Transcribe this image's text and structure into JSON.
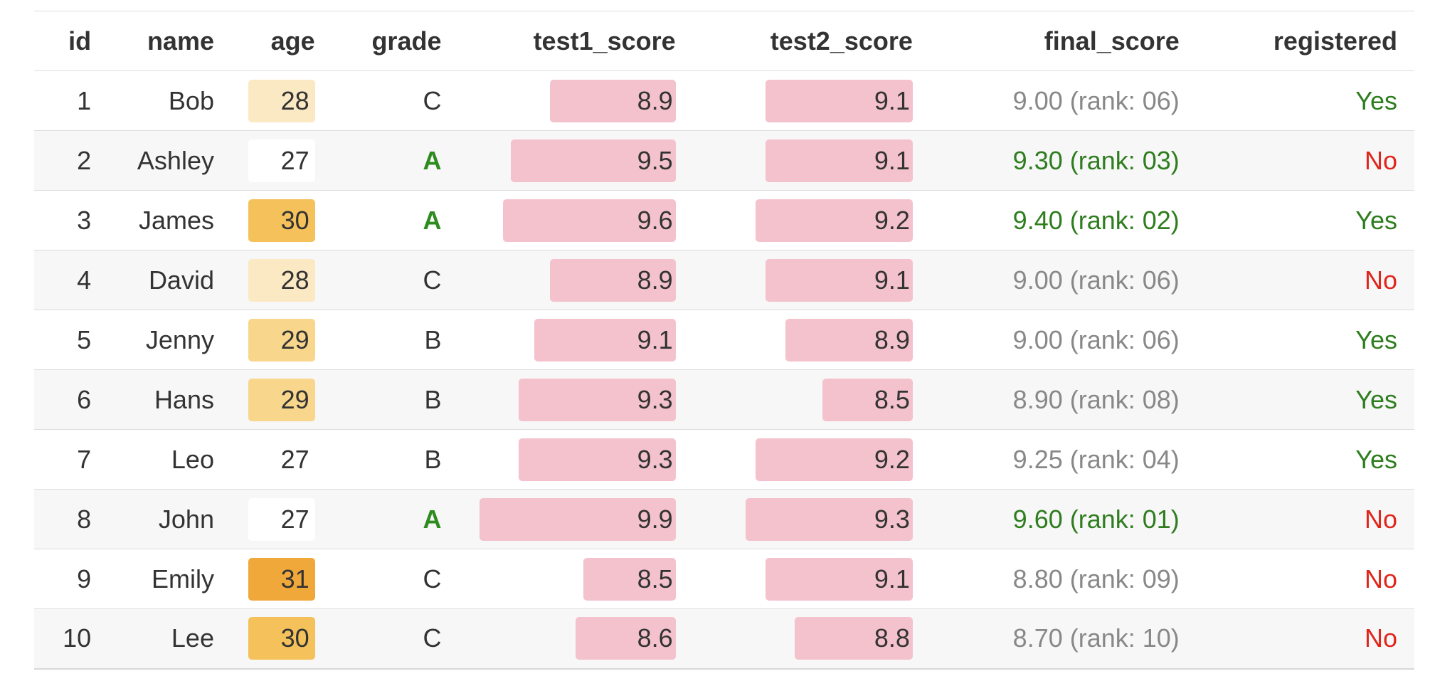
{
  "table": {
    "headers": [
      "id",
      "name",
      "age",
      "grade",
      "test1_score",
      "test2_score",
      "final_score",
      "registered"
    ],
    "rows": [
      {
        "id": "1",
        "name": "Bob",
        "age": "28",
        "age_color": "#fbe9c4",
        "grade": "C",
        "test1_score": "8.9",
        "test1_fraction": 0.64,
        "test2_score": "9.1",
        "test2_fraction": 0.75,
        "final_score": "9.00 (rank: 06)",
        "final_highlight": false,
        "registered": "Yes"
      },
      {
        "id": "2",
        "name": "Ashley",
        "age": "27",
        "age_color": "#ffffff",
        "grade": "A",
        "test1_score": "9.5",
        "test1_fraction": 0.84,
        "test2_score": "9.1",
        "test2_fraction": 0.75,
        "final_score": "9.30 (rank: 03)",
        "final_highlight": true,
        "registered": "No"
      },
      {
        "id": "3",
        "name": "James",
        "age": "30",
        "age_color": "#f5c15a",
        "grade": "A",
        "test1_score": "9.6",
        "test1_fraction": 0.88,
        "test2_score": "9.2",
        "test2_fraction": 0.8,
        "final_score": "9.40 (rank: 02)",
        "final_highlight": true,
        "registered": "Yes"
      },
      {
        "id": "4",
        "name": "David",
        "age": "28",
        "age_color": "#fbe9c4",
        "grade": "C",
        "test1_score": "8.9",
        "test1_fraction": 0.64,
        "test2_score": "9.1",
        "test2_fraction": 0.75,
        "final_score": "9.00 (rank: 06)",
        "final_highlight": false,
        "registered": "No"
      },
      {
        "id": "5",
        "name": "Jenny",
        "age": "29",
        "age_color": "#f8d68c",
        "grade": "B",
        "test1_score": "9.1",
        "test1_fraction": 0.72,
        "test2_score": "8.9",
        "test2_fraction": 0.65,
        "final_score": "9.00 (rank: 06)",
        "final_highlight": false,
        "registered": "Yes"
      },
      {
        "id": "6",
        "name": "Hans",
        "age": "29",
        "age_color": "#f8d68c",
        "grade": "B",
        "test1_score": "9.3",
        "test1_fraction": 0.8,
        "test2_score": "8.5",
        "test2_fraction": 0.46,
        "final_score": "8.90 (rank: 08)",
        "final_highlight": false,
        "registered": "Yes"
      },
      {
        "id": "7",
        "name": "Leo",
        "age": "27",
        "age_color": "transparent",
        "grade": "B",
        "test1_score": "9.3",
        "test1_fraction": 0.8,
        "test2_score": "9.2",
        "test2_fraction": 0.8,
        "final_score": "9.25 (rank: 04)",
        "final_highlight": false,
        "registered": "Yes"
      },
      {
        "id": "8",
        "name": "John",
        "age": "27",
        "age_color": "#ffffff",
        "grade": "A",
        "test1_score": "9.9",
        "test1_fraction": 1.0,
        "test2_score": "9.3",
        "test2_fraction": 0.85,
        "final_score": "9.60 (rank: 01)",
        "final_highlight": true,
        "registered": "No"
      },
      {
        "id": "9",
        "name": "Emily",
        "age": "31",
        "age_color": "#f0a83a",
        "grade": "C",
        "test1_score": "8.5",
        "test1_fraction": 0.47,
        "test2_score": "9.1",
        "test2_fraction": 0.75,
        "final_score": "8.80 (rank: 09)",
        "final_highlight": false,
        "registered": "No"
      },
      {
        "id": "10",
        "name": "Lee",
        "age": "30",
        "age_color": "#f5c15a",
        "grade": "C",
        "test1_score": "8.6",
        "test1_fraction": 0.51,
        "test2_score": "8.8",
        "test2_fraction": 0.6,
        "final_score": "8.70 (rank: 10)",
        "final_highlight": false,
        "registered": "No"
      }
    ]
  },
  "colors": {
    "bar_fill": "#f4c2cc",
    "grade_a": "#2e8b1f",
    "final_highlight": "#2e7d1e",
    "final_default": "#888888",
    "registered_yes": "#2e7d1e",
    "registered_no": "#e0251b"
  }
}
